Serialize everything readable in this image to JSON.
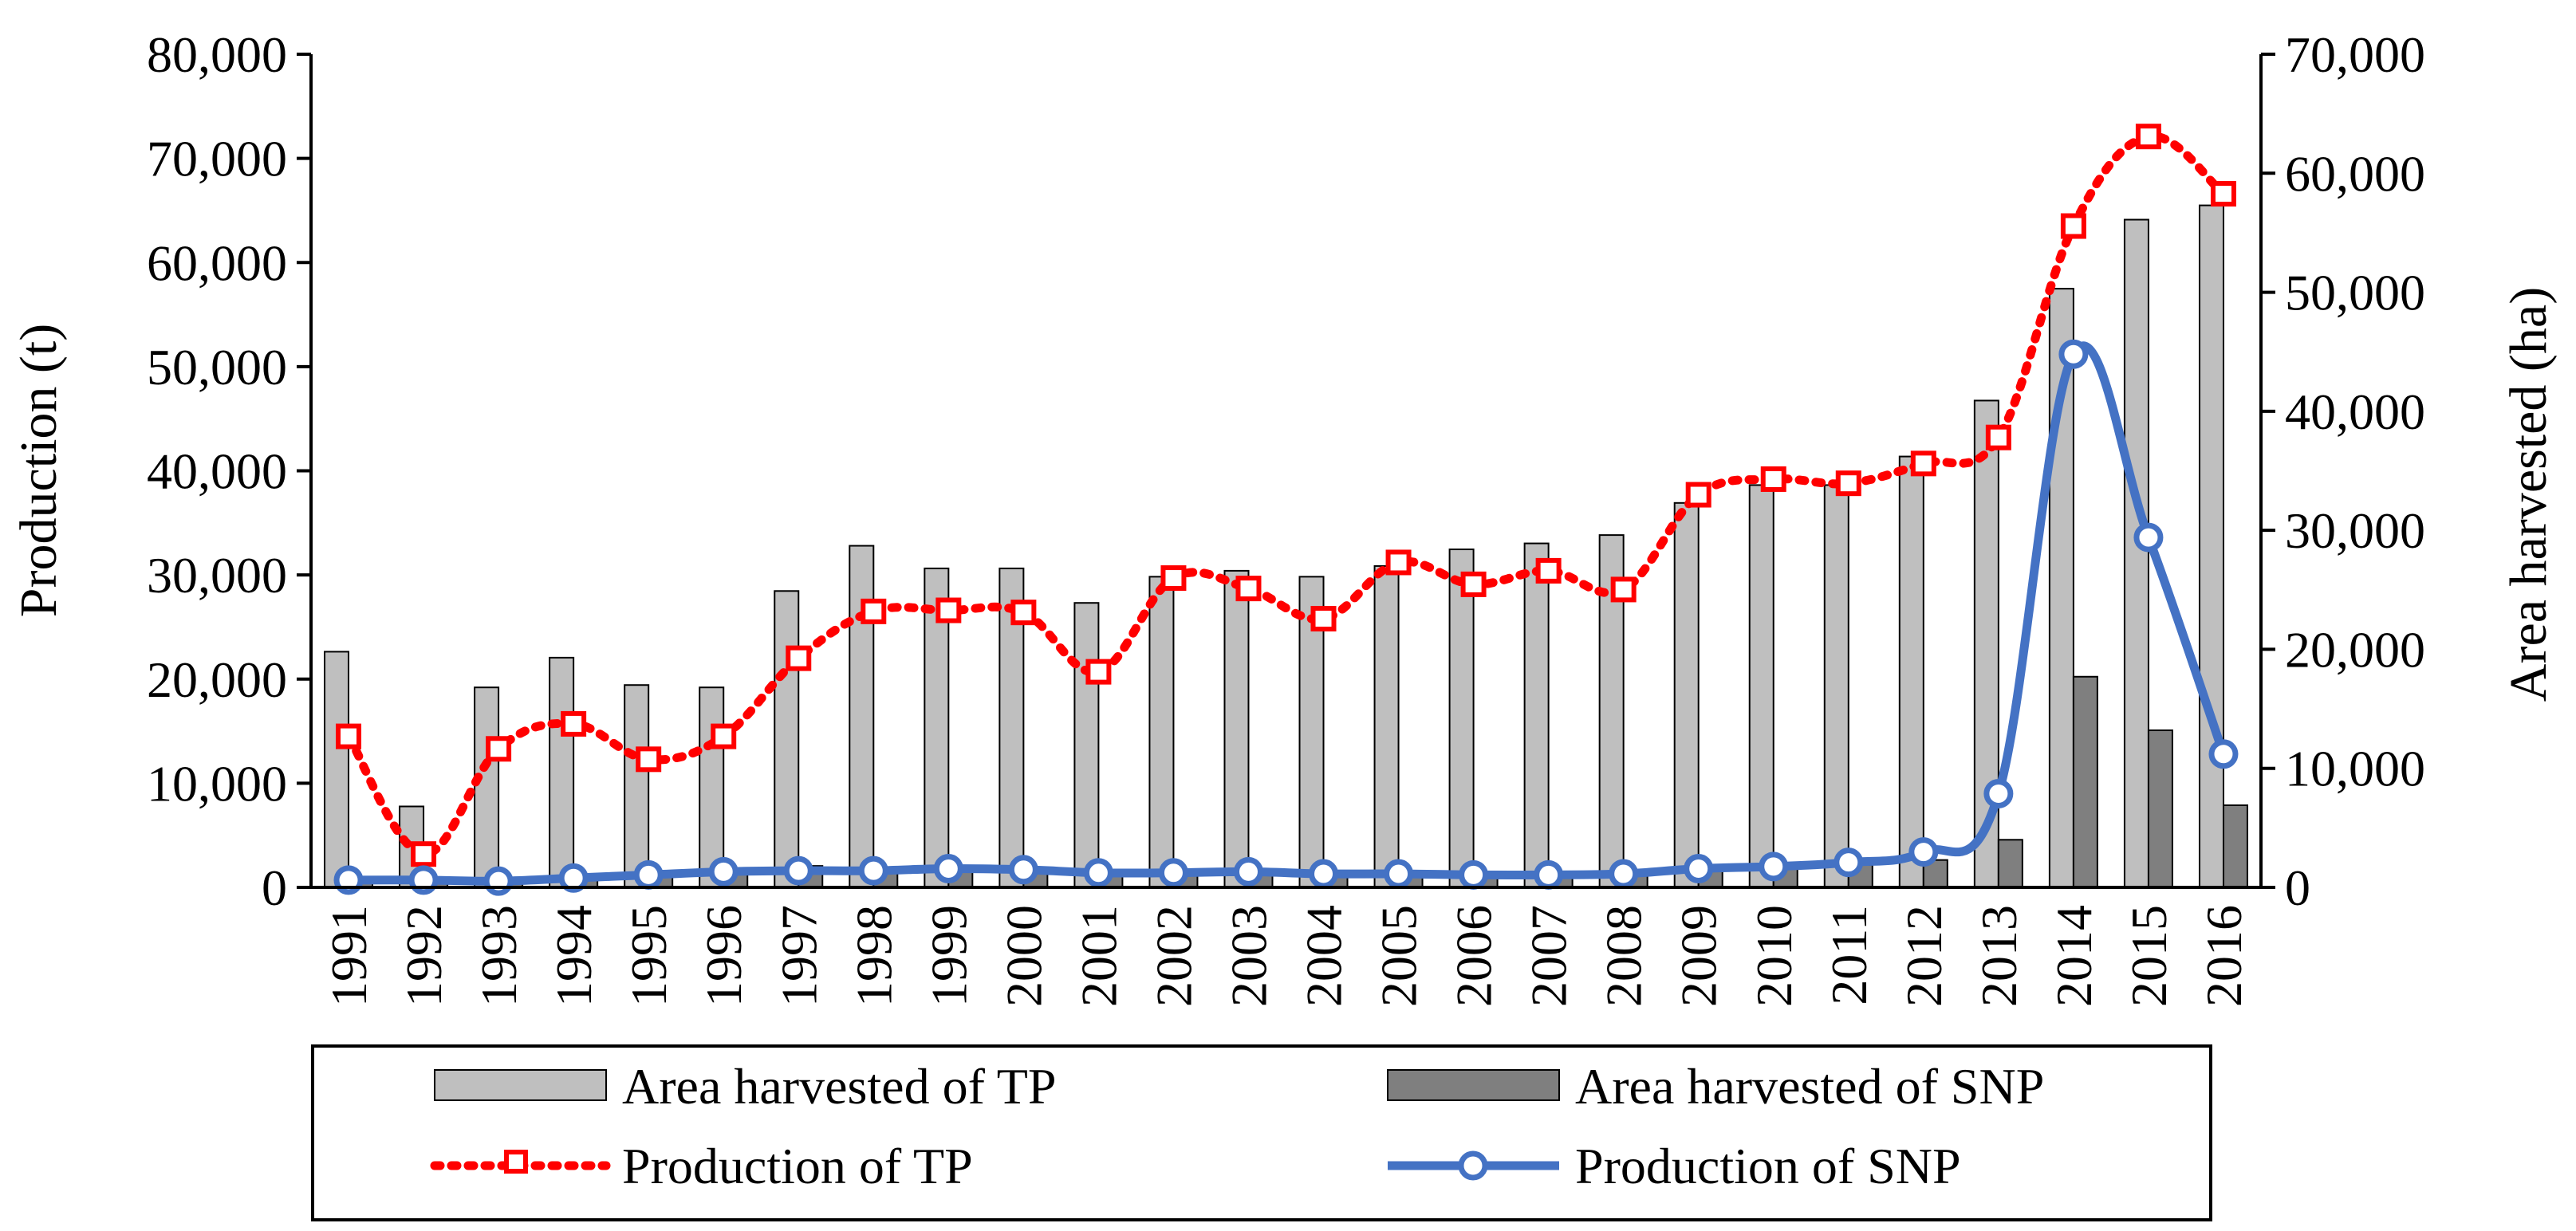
{
  "chart_data": {
    "type": "bar+line",
    "title": "",
    "categories": [
      "1991",
      "1992",
      "1993",
      "1994",
      "1995",
      "1996",
      "1997",
      "1998",
      "1999",
      "2000",
      "2001",
      "2002",
      "2003",
      "2004",
      "2005",
      "2006",
      "2007",
      "2008",
      "2009",
      "2010",
      "2011",
      "2012",
      "2013",
      "2014",
      "2015",
      "2016"
    ],
    "y_left": {
      "label": "Production (t)",
      "min": 0,
      "max": 80000,
      "step": 10000,
      "tick_labels": [
        "0",
        "10,000",
        "20,000",
        "30,000",
        "40,000",
        "50,000",
        "60,000",
        "70,000",
        "80,000"
      ]
    },
    "y_right": {
      "label": "Area harvested (ha)",
      "min": 0,
      "max": 70000,
      "step": 10000,
      "tick_labels": [
        "0",
        "10,000",
        "20,000",
        "30,000",
        "40,000",
        "50,000",
        "60,000",
        "70,000"
      ]
    },
    "series": [
      {
        "name": "Area harvested of TP",
        "kind": "bar",
        "axis": "right",
        "color": "#bfbfbf",
        "values": [
          19800,
          6800,
          16800,
          19300,
          17000,
          16800,
          24900,
          28700,
          26800,
          26800,
          23900,
          26100,
          26600,
          26100,
          27000,
          28400,
          28900,
          29600,
          32300,
          33800,
          33800,
          36200,
          40900,
          50300,
          56100,
          57300
        ]
      },
      {
        "name": "Area harvested of SNP",
        "kind": "bar",
        "axis": "right",
        "color": "#7f7f7f",
        "values": [
          800,
          500,
          600,
          800,
          1400,
          1600,
          1800,
          1600,
          1600,
          1400,
          1300,
          1200,
          1200,
          1300,
          1200,
          1100,
          1100,
          1200,
          1500,
          1700,
          1900,
          2300,
          4000,
          17700,
          13200,
          6900
        ]
      },
      {
        "name": "Production of TP",
        "kind": "line",
        "axis": "left",
        "color": "#ff0000",
        "values": [
          14500,
          3200,
          13300,
          15700,
          12300,
          14500,
          22000,
          26500,
          26600,
          26400,
          20700,
          29700,
          28700,
          25800,
          31200,
          29100,
          30400,
          28600,
          37700,
          39200,
          38800,
          40700,
          43200,
          63500,
          72100,
          66600
        ]
      },
      {
        "name": "Production of SNP",
        "kind": "line",
        "axis": "left",
        "color": "#4472c4",
        "values": [
          700,
          700,
          600,
          900,
          1200,
          1500,
          1600,
          1600,
          1800,
          1700,
          1400,
          1400,
          1500,
          1300,
          1300,
          1200,
          1200,
          1300,
          1800,
          2000,
          2400,
          3400,
          9000,
          51200,
          33600,
          12800
        ]
      }
    ],
    "legend": [
      "Area harvested of TP",
      "Area harvested of SNP",
      "Production of TP",
      "Production of SNP"
    ],
    "legend_position": "bottom",
    "grid": false
  }
}
